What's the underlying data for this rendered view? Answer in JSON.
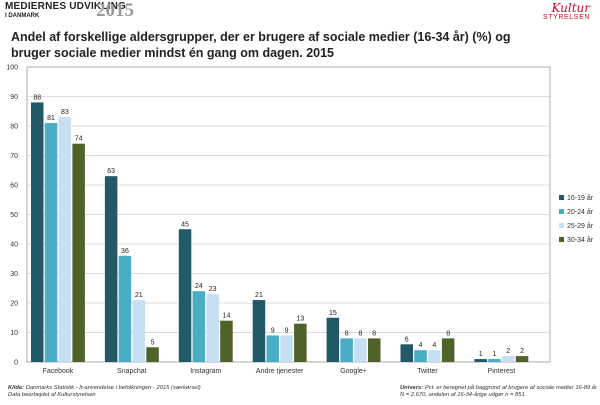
{
  "header": {
    "brand_line1": "MEDIERNES UDVIKLING",
    "brand_line2": "I DANMARK",
    "brand_year": "2015",
    "logo_script": "Kultur",
    "logo_word": "STYRELSEN"
  },
  "chart_data": {
    "type": "bar",
    "title": "Andel af forskellige aldersgrupper, der er brugere af sociale medier (16-34 år) (%) og bruger sociale medier mindst én gang om dagen. 2015",
    "xlabel": "",
    "ylabel": "",
    "ylim": [
      0,
      100
    ],
    "yticks": [
      0,
      10,
      20,
      30,
      40,
      50,
      60,
      70,
      80,
      90,
      100
    ],
    "grid": true,
    "legend_position": "right",
    "categories": [
      "Facebook",
      "Snapchat",
      "Instagram",
      "Andre tjenester",
      "Google+",
      "Twitter",
      "Pinterest"
    ],
    "series": [
      {
        "name": "16-19 år",
        "color": "#215968",
        "values": [
          88,
          63,
          45,
          21,
          15,
          6,
          1
        ]
      },
      {
        "name": "20-24 år",
        "color": "#4bacc6",
        "values": [
          81,
          36,
          24,
          9,
          8,
          4,
          1
        ]
      },
      {
        "name": "25-29 år",
        "color": "#c6dff2",
        "values": [
          83,
          21,
          23,
          9,
          8,
          4,
          2
        ]
      },
      {
        "name": "30-34 år",
        "color": "#4f6228",
        "values": [
          74,
          5,
          14,
          13,
          8,
          8,
          2
        ]
      }
    ]
  },
  "footer": {
    "source_label": "Kilde:",
    "source_text": "Danmarks Statistik - It-anvendelse i befolkningen - 2015 (særkørsel)",
    "processed_text": "Data bearbejdet af  Kulturstyrelsen",
    "universe_label": "Univers:",
    "universe_text": "Pct. er beregnet på baggrund af brugere af sociale medier 16-89 år",
    "n_text": "N = 2.670, andelen af 16-34-årige udgør n = 851"
  }
}
